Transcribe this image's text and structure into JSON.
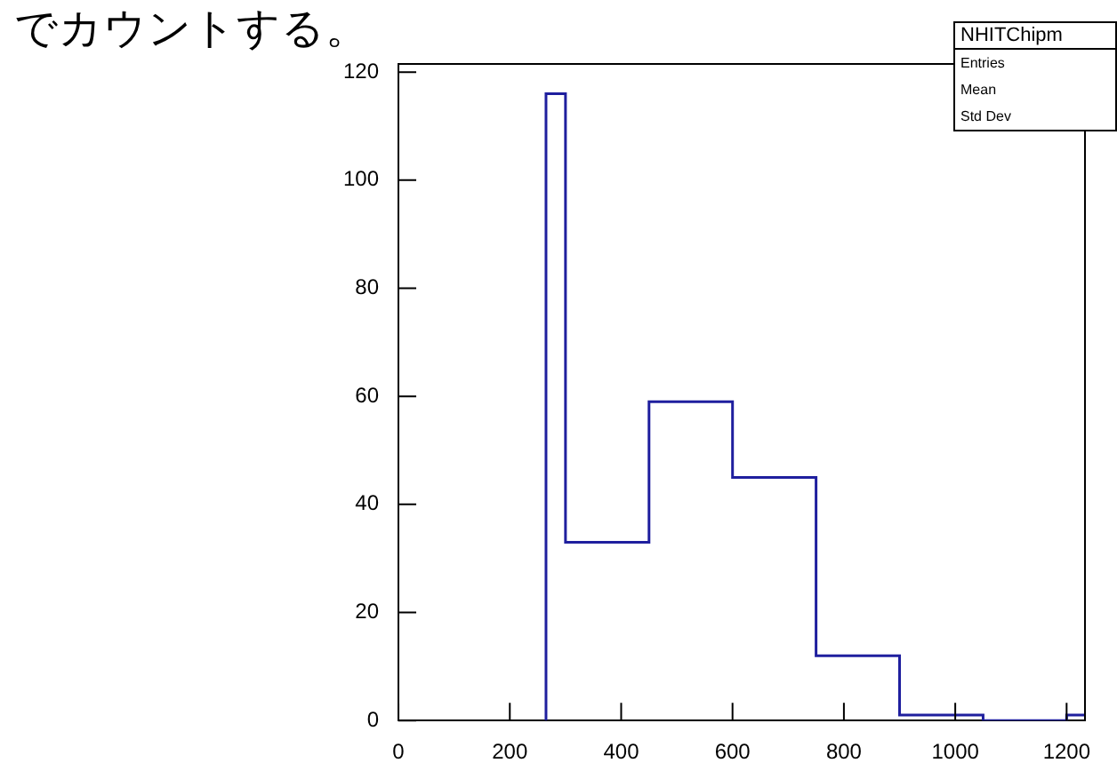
{
  "chart_data": {
    "type": "histogram",
    "title": "NHITChipm",
    "bins": [
      265,
      300,
      450,
      600,
      750,
      900,
      1050,
      1200,
      1233
    ],
    "values": [
      116,
      33,
      59,
      45,
      12,
      1,
      0,
      1
    ],
    "color": "#1f1f9e",
    "xlim": [
      0,
      1233
    ],
    "ylim": [
      0,
      121.5
    ],
    "xticks": [
      0,
      200,
      400,
      600,
      800,
      1000,
      1200
    ],
    "yticks": [
      0,
      20,
      40,
      60,
      80,
      100,
      120
    ],
    "grid": false,
    "legend": false,
    "annotations": [
      "でカウントする。",
      "Entries",
      "Mean",
      "Std Dev"
    ]
  }
}
